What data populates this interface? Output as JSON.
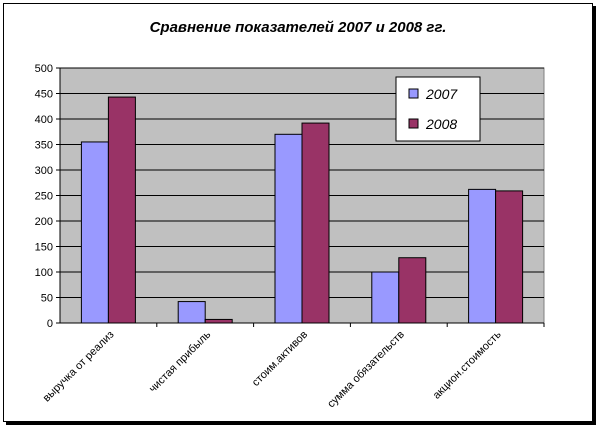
{
  "chart_data": {
    "type": "bar",
    "title": "Сравнение показателей 2007 и 2008 гг.",
    "xlabel": "",
    "ylabel": "",
    "ylim": [
      0,
      500
    ],
    "yticks": [
      0,
      50,
      100,
      150,
      200,
      250,
      300,
      350,
      400,
      450,
      500
    ],
    "grid": true,
    "legend": "top-right",
    "categories": [
      "выручка от реализ",
      "чистая прибыль",
      "стоим.активов",
      "сумма обязательств",
      "акцион.стоимость"
    ],
    "series": [
      {
        "name": "2007",
        "color": "#9999FF",
        "values": [
          355,
          42,
          370,
          100,
          262
        ]
      },
      {
        "name": "2008",
        "color": "#993366",
        "values": [
          443,
          7,
          392,
          128,
          259
        ]
      }
    ],
    "plot_background": "#C0C0C0"
  }
}
